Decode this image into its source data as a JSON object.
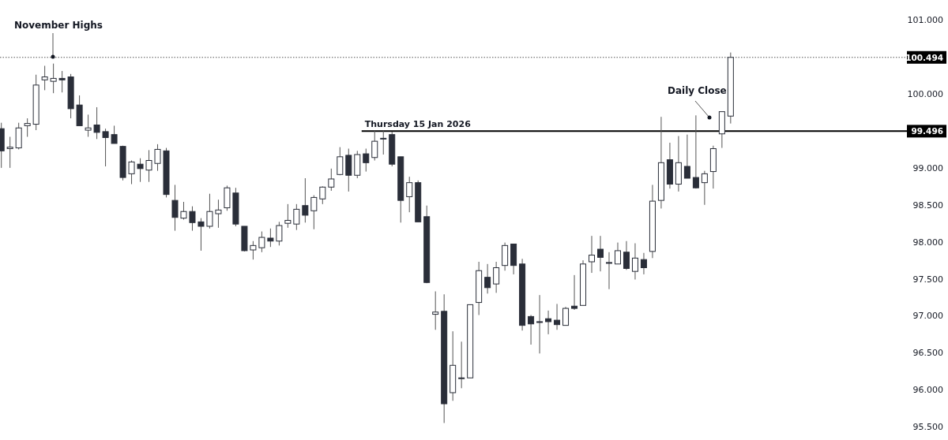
{
  "chart_data": {
    "type": "candlestick",
    "categories": [
      null,
      null,
      null,
      null,
      null,
      null,
      null,
      null,
      null,
      null,
      null,
      null,
      null,
      null,
      null,
      null,
      null,
      null,
      null,
      null,
      null,
      null,
      null,
      null,
      null,
      null,
      null,
      null,
      null,
      null,
      null,
      null,
      null,
      null,
      null,
      null,
      null,
      null,
      null,
      null,
      null,
      null,
      null,
      null,
      null,
      null,
      null,
      null,
      null,
      null,
      null,
      null,
      null,
      null,
      null,
      null,
      null,
      null,
      null,
      null,
      null,
      null,
      null,
      null,
      null,
      null,
      null,
      null,
      null,
      null,
      null,
      null,
      null,
      null,
      null,
      null,
      null,
      null,
      null,
      null,
      null,
      null,
      null,
      null,
      null,
      null,
      null,
      null,
      null,
      null,
      null,
      null,
      null,
      null,
      null,
      null,
      null,
      null,
      null,
      null,
      null,
      null,
      null,
      null
    ],
    "ohlc": [
      [
        99.53,
        99.61,
        99.0,
        99.23
      ],
      [
        99.26,
        99.42,
        99.0,
        99.28
      ],
      [
        99.27,
        99.61,
        99.25,
        99.54
      ],
      [
        99.57,
        99.67,
        99.42,
        99.6
      ],
      [
        99.59,
        100.26,
        99.51,
        100.12
      ],
      [
        100.19,
        100.38,
        100.05,
        100.23
      ],
      [
        100.17,
        100.41,
        100.01,
        100.21
      ],
      [
        100.21,
        100.31,
        100.02,
        100.19
      ],
      [
        100.23,
        100.27,
        99.67,
        99.8
      ],
      [
        99.85,
        99.98,
        99.57,
        99.57
      ],
      [
        99.51,
        99.72,
        99.42,
        99.54
      ],
      [
        99.58,
        99.82,
        99.39,
        99.48
      ],
      [
        99.49,
        99.53,
        99.02,
        99.41
      ],
      [
        99.45,
        99.57,
        99.33,
        99.33
      ],
      [
        99.29,
        99.3,
        98.83,
        98.87
      ],
      [
        98.92,
        99.1,
        98.78,
        99.08
      ],
      [
        99.05,
        99.13,
        98.81,
        98.99
      ],
      [
        98.97,
        99.24,
        98.81,
        99.1
      ],
      [
        99.06,
        99.32,
        98.96,
        99.25
      ],
      [
        99.23,
        99.27,
        98.6,
        98.64
      ],
      [
        98.56,
        98.77,
        98.15,
        98.33
      ],
      [
        98.32,
        98.54,
        98.3,
        98.41
      ],
      [
        98.41,
        98.48,
        98.15,
        98.26
      ],
      [
        98.27,
        98.32,
        97.88,
        98.21
      ],
      [
        98.21,
        98.65,
        98.18,
        98.41
      ],
      [
        98.38,
        98.57,
        98.19,
        98.43
      ],
      [
        98.46,
        98.76,
        98.42,
        98.73
      ],
      [
        98.66,
        98.73,
        98.21,
        98.24
      ],
      [
        98.21,
        98.21,
        97.87,
        97.88
      ],
      [
        97.89,
        98.01,
        97.76,
        97.95
      ],
      [
        97.92,
        98.14,
        97.86,
        98.06
      ],
      [
        98.05,
        98.18,
        97.93,
        98.01
      ],
      [
        98.01,
        98.27,
        97.95,
        98.22
      ],
      [
        98.25,
        98.51,
        98.19,
        98.29
      ],
      [
        98.24,
        98.51,
        98.16,
        98.44
      ],
      [
        98.49,
        98.86,
        98.26,
        98.36
      ],
      [
        98.42,
        98.63,
        98.17,
        98.6
      ],
      [
        98.58,
        98.75,
        98.51,
        98.74
      ],
      [
        98.74,
        98.99,
        98.69,
        98.85
      ],
      [
        98.91,
        99.28,
        98.9,
        99.15
      ],
      [
        99.17,
        99.26,
        98.68,
        98.9
      ],
      [
        98.9,
        99.23,
        98.86,
        99.18
      ],
      [
        99.19,
        99.26,
        98.95,
        99.07
      ],
      [
        99.14,
        99.5,
        99.1,
        99.36
      ],
      [
        99.39,
        99.5,
        99.18,
        99.4
      ],
      [
        99.45,
        99.49,
        99.02,
        99.05
      ],
      [
        99.15,
        99.15,
        98.26,
        98.56
      ],
      [
        98.61,
        98.88,
        98.4,
        98.8
      ],
      [
        98.8,
        98.83,
        98.27,
        98.27
      ],
      [
        98.34,
        98.49,
        97.44,
        97.45
      ],
      [
        97.02,
        97.33,
        96.81,
        97.05
      ],
      [
        97.06,
        97.29,
        95.55,
        95.81
      ],
      [
        95.96,
        96.79,
        95.85,
        96.33
      ],
      [
        96.15,
        96.65,
        96.02,
        96.16
      ],
      [
        96.16,
        97.15,
        96.16,
        97.15
      ],
      [
        97.18,
        97.73,
        97.01,
        97.61
      ],
      [
        97.52,
        97.7,
        97.3,
        97.38
      ],
      [
        97.43,
        97.73,
        97.31,
        97.65
      ],
      [
        97.68,
        97.99,
        97.61,
        97.95
      ],
      [
        97.97,
        97.97,
        97.56,
        97.68
      ],
      [
        97.7,
        97.77,
        96.8,
        96.87
      ],
      [
        96.99,
        97.01,
        96.61,
        96.89
      ],
      [
        96.92,
        97.28,
        96.49,
        96.91
      ],
      [
        96.96,
        97.07,
        96.75,
        96.92
      ],
      [
        96.94,
        97.16,
        96.81,
        96.88
      ],
      [
        96.87,
        97.12,
        96.87,
        97.1
      ],
      [
        97.13,
        97.55,
        97.08,
        97.1
      ],
      [
        97.14,
        97.75,
        97.14,
        97.7
      ],
      [
        97.73,
        98.08,
        97.58,
        97.82
      ],
      [
        97.9,
        98.08,
        97.6,
        97.79
      ],
      [
        97.72,
        97.86,
        97.36,
        97.71
      ],
      [
        97.7,
        97.99,
        97.7,
        97.88
      ],
      [
        97.86,
        98.01,
        97.62,
        97.64
      ],
      [
        97.6,
        97.98,
        97.49,
        97.78
      ],
      [
        97.76,
        97.85,
        97.56,
        97.65
      ],
      [
        97.87,
        98.77,
        97.78,
        98.55
      ],
      [
        98.56,
        99.69,
        98.45,
        99.07
      ],
      [
        99.11,
        99.34,
        98.72,
        98.78
      ],
      [
        98.78,
        99.43,
        98.68,
        99.07
      ],
      [
        99.02,
        99.45,
        98.86,
        98.86
      ],
      [
        98.87,
        99.71,
        98.72,
        98.73
      ],
      [
        98.8,
        98.96,
        98.5,
        98.92
      ],
      [
        98.95,
        99.3,
        98.72,
        99.26
      ],
      [
        99.46,
        99.76,
        99.27,
        99.76
      ],
      [
        99.7,
        100.56,
        99.6,
        100.494
      ],
      null,
      null,
      null,
      null,
      null,
      null,
      null,
      null,
      null,
      null,
      null,
      null,
      null,
      null,
      null,
      null,
      null,
      null,
      null
    ],
    "ylim": [
      95.32,
      101.27
    ],
    "yticks": [
      {
        "value": 95.5,
        "label": "95.500"
      },
      {
        "value": 96,
        "label": "96.000"
      },
      {
        "value": 96.5,
        "label": "96.500"
      },
      {
        "value": 97,
        "label": "97.000"
      },
      {
        "value": 97.5,
        "label": "97.500"
      },
      {
        "value": 98,
        "label": "98.000"
      },
      {
        "value": 98.5,
        "label": "98.500"
      },
      {
        "value": 99,
        "label": "99.000"
      },
      {
        "value": 99.496,
        "label": "99.496"
      },
      {
        "value": 100,
        "label": "100.000"
      },
      {
        "value": 100.494,
        "label": "100.494"
      },
      {
        "value": 101,
        "label": "101.000"
      }
    ],
    "ref_lines": [
      {
        "axis": "y",
        "value": 99.496,
        "label": "Thursday 15 Jan 2026",
        "color": "#000000",
        "line_style": "solid"
      },
      {
        "axis": "y",
        "value": 100.494,
        "color": "#555555",
        "line_style": "dotted"
      }
    ],
    "annotations": [
      "November Highs",
      "Daily Close"
    ],
    "grid": false
  }
}
